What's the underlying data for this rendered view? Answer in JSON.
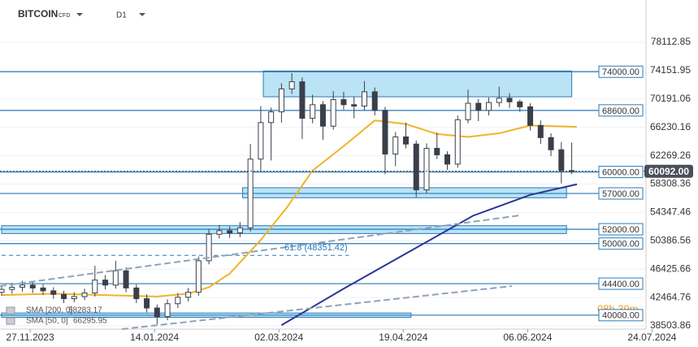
{
  "chart_data": {
    "type": "candlestick",
    "title": "BITCOIN",
    "instrument_type": "CFD",
    "timeframe": "D1",
    "ylim": [
      38050,
      84020
    ],
    "yticks": [
      78112.85,
      74151.95,
      70191.06,
      66230.16,
      62269.26,
      58308.36,
      54347.46,
      50386.56,
      46425.66,
      42464.76,
      38503.86
    ],
    "xlim": [
      0,
      254
    ],
    "xticks": [
      {
        "value": 11,
        "label": "27.11.2023"
      },
      {
        "value": 59,
        "label": "14.01.2024"
      },
      {
        "value": 107,
        "label": "02.03.2024"
      },
      {
        "value": 155,
        "label": "19.04.2024"
      },
      {
        "value": 203,
        "label": "06.06.2024"
      },
      {
        "value": 251,
        "label": "24.07.2024"
      }
    ],
    "series": [
      {
        "name": "BITCOIN",
        "up_color": "#ffffff",
        "down_color": "#3a3f4a",
        "x": [
          0,
          4,
          8,
          12,
          16,
          20,
          24,
          28,
          32,
          36,
          40,
          44,
          48,
          52,
          56,
          60,
          64,
          68,
          72,
          76,
          80,
          84,
          88,
          92,
          96,
          100,
          104,
          108,
          112,
          116,
          120,
          124,
          128,
          132,
          136,
          140,
          144,
          148,
          152,
          156,
          160,
          164,
          168,
          172,
          176,
          180,
          184,
          188,
          192,
          196,
          200,
          204,
          208,
          212,
          216,
          220
        ],
        "open": [
          43200,
          43600,
          43900,
          44200,
          43800,
          43400,
          42900,
          42300,
          42600,
          43100,
          44900,
          44200,
          46200,
          43800,
          42300,
          41000,
          39800,
          41600,
          42500,
          43200,
          47600,
          51300,
          51800,
          51500,
          52200,
          61800,
          66900,
          68400,
          71600,
          72600,
          67500,
          69400,
          66400,
          70100,
          69400,
          69200,
          71200,
          68600,
          62500,
          64900,
          63900,
          57500,
          63300,
          62400,
          61100,
          67300,
          69600,
          68600,
          69700,
          70300,
          69800,
          69100,
          66500,
          64800,
          63100,
          60200
        ],
        "high": [
          44100,
          44500,
          44800,
          44700,
          44300,
          43900,
          43400,
          43200,
          43700,
          46900,
          45600,
          47600,
          46700,
          44300,
          42900,
          41500,
          42200,
          43100,
          43800,
          48200,
          52000,
          52600,
          52400,
          53000,
          63900,
          69200,
          69000,
          72400,
          73800,
          73200,
          70800,
          69900,
          71300,
          71200,
          70500,
          72700,
          71800,
          69100,
          65600,
          66900,
          64400,
          64000,
          65500,
          62900,
          67900,
          71500,
          70200,
          70400,
          71900,
          71000,
          70100,
          69600,
          67200,
          65400,
          64200,
          64100
        ],
        "low": [
          42700,
          43000,
          43300,
          43100,
          42800,
          42300,
          41700,
          41800,
          42100,
          42600,
          43600,
          43700,
          43200,
          41700,
          40400,
          38700,
          39300,
          41000,
          41900,
          42700,
          47100,
          50700,
          50800,
          50900,
          51700,
          60200,
          61600,
          66900,
          70900,
          64600,
          66800,
          64500,
          65900,
          68700,
          67500,
          68600,
          67900,
          59700,
          60800,
          63300,
          56500,
          57000,
          61800,
          60300,
          60600,
          66800,
          67100,
          67900,
          69100,
          68900,
          68400,
          65800,
          63900,
          62200,
          58400,
          59700
        ],
        "values": [
          43600,
          43900,
          44200,
          43800,
          43400,
          42900,
          42300,
          42600,
          43100,
          44900,
          44200,
          46200,
          43800,
          42300,
          41000,
          39800,
          41600,
          42500,
          43200,
          47600,
          51300,
          51800,
          51500,
          52200,
          61800,
          66900,
          68400,
          71600,
          72600,
          67500,
          69400,
          66400,
          70100,
          69400,
          69200,
          71200,
          68600,
          62500,
          64900,
          63900,
          57500,
          63300,
          62400,
          61100,
          67300,
          69600,
          68600,
          69700,
          70300,
          69800,
          69100,
          66500,
          64800,
          63100,
          60200,
          60092
        ],
        "value_labels": [
          null,
          null,
          null,
          null,
          null,
          null,
          null,
          null,
          null,
          null,
          null,
          null,
          null,
          null,
          null,
          null,
          null,
          null,
          null,
          null,
          null,
          null,
          null,
          null,
          null,
          null,
          null,
          null,
          null,
          null,
          null,
          null,
          null,
          null,
          null,
          null,
          null,
          null,
          null,
          null,
          null,
          null,
          null,
          null,
          null,
          null,
          null,
          null,
          null,
          null,
          null,
          null,
          null,
          null,
          null,
          "60092.00"
        ]
      }
    ],
    "indicators": [
      {
        "name": "SMA [200, 0]",
        "color": "#2a3595",
        "x": [
          108,
          132,
          157,
          182,
          204,
          222
        ],
        "values": [
          38600,
          43700,
          48800,
          53900,
          56800,
          58283.17
        ]
      },
      {
        "name": "SMA [50, 0]",
        "color": "#f0b429",
        "x": [
          0,
          20,
          40,
          60,
          72,
          80,
          88,
          100,
          110,
          120,
          132,
          144,
          156,
          168,
          180,
          192,
          204,
          222
        ],
        "values": [
          42800,
          43000,
          42800,
          42600,
          43000,
          43900,
          45800,
          50500,
          55000,
          60200,
          63600,
          67200,
          66700,
          65300,
          64900,
          65400,
          66500,
          66295.95
        ]
      }
    ],
    "levels": [
      {
        "value": 74000,
        "label": "74000.00"
      },
      {
        "value": 68600,
        "label": "68600.00"
      },
      {
        "value": 60000,
        "label": "60000.00"
      },
      {
        "value": 57000,
        "label": "57000.00"
      },
      {
        "value": 52000,
        "label": "52000.00"
      },
      {
        "value": 50000,
        "label": "50000.00"
      },
      {
        "value": 44400,
        "label": "44400.00"
      },
      {
        "value": 40000,
        "label": "40000.00"
      }
    ],
    "level_color": "#2a7ab8",
    "zones": [
      {
        "low": 70500,
        "high": 74100,
        "start": 101,
        "end": 220
      },
      {
        "low": 56400,
        "high": 57800,
        "start": 93,
        "end": 218
      },
      {
        "low": 51400,
        "high": 52500,
        "start": 0,
        "end": 218
      },
      {
        "low": 39700,
        "high": 40300,
        "start": 0,
        "end": 158
      }
    ],
    "zone_color": "#a9dcf3",
    "fib": {
      "label": "61.8 (48351.42)",
      "value": 48351.42,
      "start": 0,
      "end": 134
    },
    "countdown": "08h 39m"
  }
}
